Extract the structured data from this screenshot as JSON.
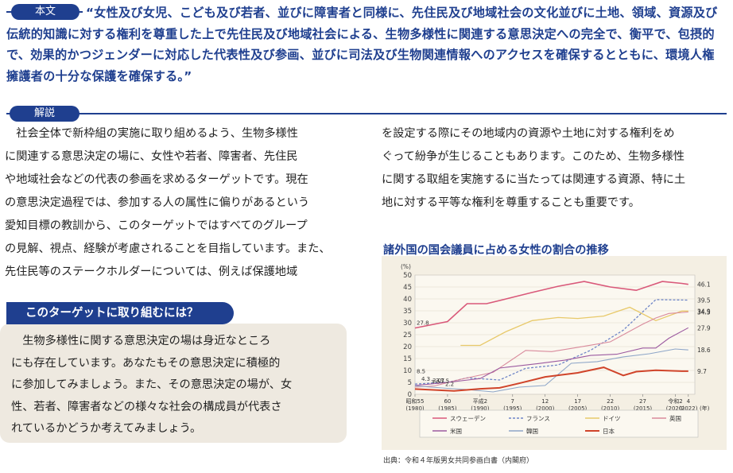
{
  "honbun": {
    "label": "本文",
    "text": "“女性及び女児、こども及び若者、並びに障害者と同様に、先住民及び地域社会の文化並びに土地、領域、資源及び伝統的知識に対する権利を尊重した上で先住民及び地域社会による、生物多様性に関連する意思決定への完全で、衡平で、包摂的で、効果的かつジェンダーに対応した代表性及び参画、並びに司法及び生物関連情報へのアクセスを確保するとともに、環境人権擁護者の十分な保護を確保する。”"
  },
  "kaisetsu": {
    "label": "解説",
    "left_lines": [
      "　社会全体で新枠組の実施に取り組めるよう、生物多様性",
      "に関連する意思決定の場に、女性や若者、障害者、先住民",
      "や地域社会などの代表の参画を求めるターゲットです。現在",
      "の意思決定過程では、参加する人の属性に偏りがあるという",
      "愛知目標の教訓から、このターゲットではすべてのグループ",
      "の見解、視点、経験が考慮されることを目指しています。また、",
      "先住民等のステークホルダーについては、例えば保護地域"
    ],
    "right_lines": [
      "を設定する際にその地域内の資源や土地に対する権利をめ",
      "ぐって紛争が生じることもあります。このため、生物多様性",
      "に関する取組を実施するに当たっては関連する資源、特に土",
      "地に対する平等な権利を尊重することも重要です。"
    ]
  },
  "target_box": {
    "heading": "このターゲットに取り組むには？",
    "lines": [
      "　生物多様性に関する意思決定の場は身近なところ",
      "にも存在しています。あなたもその意思決定に積極的",
      "に参加してみましょう。また、その意思決定の場が、女",
      "性、若者、障害者などの様々な社会の構成員が代表さ",
      "れているかどうか考えてみましょう。"
    ]
  },
  "chart_title": "諸外国の国会議員に占める女性の割合の推移",
  "source": "出典：令和４年版男女共同参画白書（内閣府）",
  "chart_data": {
    "type": "line",
    "ylabel": "(%)",
    "xlabel": "(年)",
    "ylim": [
      0,
      50
    ],
    "yticks": [
      0,
      5,
      10,
      15,
      20,
      25,
      30,
      35,
      40,
      45,
      50
    ],
    "x_ticks": [
      {
        "x": 1980,
        "top": "昭和55",
        "bottom": "(1980)"
      },
      {
        "x": 1985,
        "top": "60",
        "bottom": "(1985)"
      },
      {
        "x": 1990,
        "top": "平成2",
        "bottom": "(1990)"
      },
      {
        "x": 1995,
        "top": "7",
        "bottom": "(1995)"
      },
      {
        "x": 2000,
        "top": "12",
        "bottom": "(2000)"
      },
      {
        "x": 2005,
        "top": "17",
        "bottom": "(2005)"
      },
      {
        "x": 2010,
        "top": "22",
        "bottom": "(2010)"
      },
      {
        "x": 2015,
        "top": "27",
        "bottom": "(2015)"
      },
      {
        "x": 2020,
        "top": "令和2",
        "bottom": "(2020)"
      },
      {
        "x": 2022,
        "top": "4",
        "bottom": "(2022)"
      }
    ],
    "xlim": [
      1980,
      2023
    ],
    "series": [
      {
        "name": "スウェーデン",
        "color": "#d9597a",
        "dash": "",
        "width": 1.6,
        "points": [
          [
            1980,
            27.8
          ],
          [
            1985,
            30.5
          ],
          [
            1988,
            38
          ],
          [
            1991,
            38
          ],
          [
            1994,
            40
          ],
          [
            1998,
            42.7
          ],
          [
            2002,
            45.3
          ],
          [
            2006,
            47.3
          ],
          [
            2010,
            45
          ],
          [
            2014,
            43.6
          ],
          [
            2018,
            47.3
          ],
          [
            2021,
            46.5
          ],
          [
            2022,
            46.1
          ]
        ],
        "start_label": "27.8",
        "end_label": "46.1"
      },
      {
        "name": "フランス",
        "color": "#6f86c7",
        "dash": "3,2",
        "width": 1.3,
        "points": [
          [
            1980,
            4.3
          ],
          [
            1985,
            5
          ],
          [
            1988,
            6.9
          ],
          [
            1993,
            6
          ],
          [
            1997,
            10.9
          ],
          [
            2002,
            12.3
          ],
          [
            2007,
            18.5
          ],
          [
            2012,
            26.9
          ],
          [
            2017,
            39.7
          ],
          [
            2022,
            39.5
          ]
        ],
        "start_label": "4.3",
        "end_label": "39.5"
      },
      {
        "name": "ドイツ",
        "color": "#e8c96a",
        "dash": "",
        "width": 1.3,
        "points": [
          [
            1987,
            20.5
          ],
          [
            1990,
            20.5
          ],
          [
            1994,
            26.3
          ],
          [
            1998,
            30.9
          ],
          [
            2002,
            32.2
          ],
          [
            2005,
            31.8
          ],
          [
            2009,
            32.8
          ],
          [
            2013,
            36.5
          ],
          [
            2017,
            30.9
          ],
          [
            2021,
            34.9
          ],
          [
            2022,
            34.9
          ]
        ],
        "start_label": "",
        "end_label": "34.9"
      },
      {
        "name": "英国",
        "color": "#d98a9c",
        "dash": "",
        "width": 1.1,
        "points": [
          [
            1980,
            3
          ],
          [
            1983,
            3.5
          ],
          [
            1987,
            6.3
          ],
          [
            1992,
            9.2
          ],
          [
            1997,
            18.4
          ],
          [
            2001,
            17.9
          ],
          [
            2005,
            19.7
          ],
          [
            2010,
            22
          ],
          [
            2015,
            29.4
          ],
          [
            2017,
            32
          ],
          [
            2019,
            33.9
          ],
          [
            2022,
            34.5
          ]
        ],
        "start_label": "3.0",
        "end_label": "34.5"
      },
      {
        "name": "米国",
        "color": "#9c5aa0",
        "dash": "",
        "width": 1.1,
        "points": [
          [
            1980,
            3.7
          ],
          [
            1985,
            5
          ],
          [
            1990,
            6.6
          ],
          [
            1993,
            11
          ],
          [
            1999,
            12.9
          ],
          [
            2003,
            14.3
          ],
          [
            2007,
            16.3
          ],
          [
            2011,
            16.8
          ],
          [
            2015,
            19.4
          ],
          [
            2017,
            19.4
          ],
          [
            2019,
            23.5
          ],
          [
            2022,
            27.9
          ]
        ],
        "start_label": "3.7",
        "end_label": "27.9"
      },
      {
        "name": "韓国",
        "color": "#8ea6c8",
        "dash": "",
        "width": 1.1,
        "points": [
          [
            1980,
            3.5
          ],
          [
            1985,
            2.5
          ],
          [
            1988,
            2
          ],
          [
            1992,
            1
          ],
          [
            1996,
            3
          ],
          [
            2000,
            3.7
          ],
          [
            2004,
            13
          ],
          [
            2008,
            13.7
          ],
          [
            2012,
            15.7
          ],
          [
            2016,
            17
          ],
          [
            2020,
            19
          ],
          [
            2022,
            18.6
          ]
        ],
        "start_label": "3.5",
        "end_label": "18.6"
      },
      {
        "name": "日本",
        "color": "#d0442a",
        "dash": "",
        "width": 2.0,
        "points": [
          [
            1980,
            2.2
          ],
          [
            1986,
            1.4
          ],
          [
            1990,
            2.3
          ],
          [
            1993,
            2.7
          ],
          [
            1996,
            4.6
          ],
          [
            2000,
            7.3
          ],
          [
            2005,
            9
          ],
          [
            2009,
            11.3
          ],
          [
            2012,
            7.9
          ],
          [
            2014,
            9.5
          ],
          [
            2017,
            10.1
          ],
          [
            2021,
            9.7
          ],
          [
            2022,
            9.7
          ]
        ],
        "start_label": "2.2",
        "end_label": "9.7"
      }
    ],
    "extra_labels": [
      "8.5",
      "3.0"
    ]
  }
}
